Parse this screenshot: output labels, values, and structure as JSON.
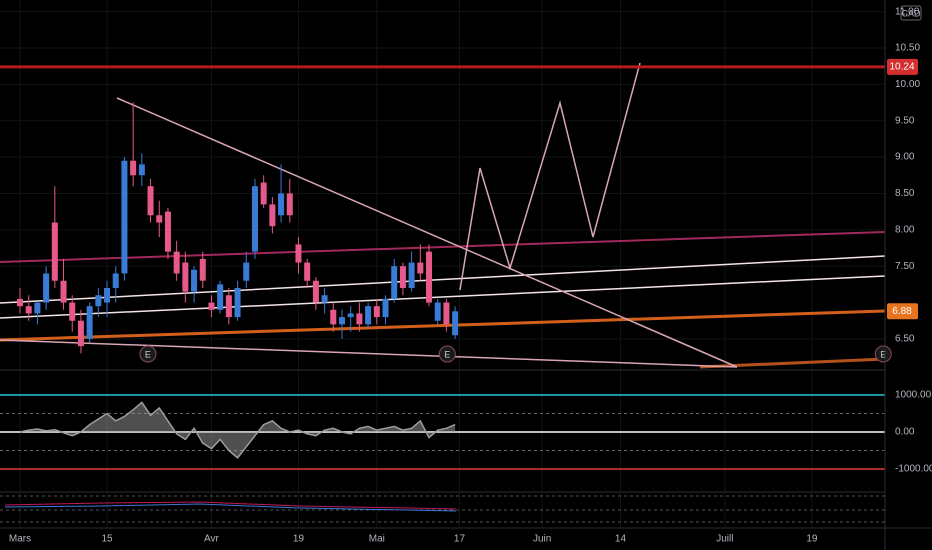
{
  "chart_data": {
    "type": "candlestick",
    "currency": "CAD",
    "x": [
      0,
      1,
      2,
      3,
      4,
      5,
      6,
      7,
      8,
      9,
      10,
      11,
      12,
      13,
      14,
      15,
      16,
      17,
      18,
      19,
      20,
      21,
      22,
      23,
      24,
      25,
      26,
      27,
      28,
      29,
      30,
      31,
      32,
      33,
      34,
      35,
      36,
      37,
      38,
      39,
      40,
      41,
      42,
      43,
      44,
      45,
      46,
      47,
      48,
      49,
      50
    ],
    "open": [
      7.05,
      6.95,
      6.85,
      7.0,
      8.1,
      7.3,
      7.0,
      6.75,
      6.5,
      6.95,
      7.0,
      7.2,
      7.4,
      8.95,
      8.75,
      8.6,
      8.2,
      8.25,
      7.7,
      7.55,
      7.15,
      7.6,
      7.0,
      6.9,
      7.1,
      6.8,
      7.3,
      7.7,
      8.65,
      8.35,
      8.2,
      8.5,
      7.8,
      7.55,
      7.3,
      7.0,
      6.9,
      6.7,
      6.8,
      6.85,
      6.7,
      6.95,
      6.8,
      7.05,
      7.5,
      7.2,
      7.55,
      7.7,
      6.75,
      7.0,
      6.55
    ],
    "high": [
      7.2,
      7.1,
      7.0,
      7.5,
      8.6,
      7.6,
      7.1,
      6.9,
      7.0,
      7.2,
      7.3,
      7.5,
      9.0,
      9.75,
      9.05,
      8.7,
      8.4,
      8.3,
      7.85,
      7.7,
      7.5,
      7.7,
      7.1,
      7.3,
      7.2,
      7.3,
      7.7,
      8.7,
      8.75,
      8.45,
      8.9,
      8.7,
      7.9,
      7.6,
      7.35,
      7.2,
      7.0,
      6.9,
      6.95,
      7.0,
      7.0,
      7.05,
      7.1,
      7.6,
      7.55,
      7.7,
      7.8,
      7.8,
      7.05,
      7.05,
      6.95
    ],
    "low": [
      6.85,
      6.75,
      6.7,
      6.9,
      7.2,
      6.9,
      6.6,
      6.3,
      6.45,
      6.8,
      6.8,
      7.0,
      7.3,
      8.6,
      8.6,
      8.1,
      7.9,
      7.6,
      7.3,
      7.0,
      7.0,
      7.2,
      6.8,
      6.85,
      6.7,
      6.75,
      7.2,
      7.6,
      8.3,
      7.95,
      8.1,
      8.1,
      7.4,
      7.2,
      6.9,
      6.85,
      6.6,
      6.5,
      6.6,
      6.6,
      6.65,
      6.7,
      6.7,
      7.0,
      7.1,
      7.15,
      7.3,
      6.95,
      6.7,
      6.6,
      6.5
    ],
    "close": [
      6.95,
      6.85,
      7.0,
      7.4,
      7.3,
      7.0,
      6.75,
      6.4,
      6.95,
      7.1,
      7.2,
      7.4,
      8.95,
      8.75,
      8.9,
      8.2,
      8.1,
      7.7,
      7.4,
      7.15,
      7.45,
      7.3,
      6.9,
      7.25,
      6.8,
      7.2,
      7.55,
      8.6,
      8.35,
      8.05,
      8.5,
      8.2,
      7.55,
      7.3,
      7.0,
      7.1,
      6.7,
      6.8,
      6.85,
      6.7,
      6.95,
      6.8,
      7.05,
      7.5,
      7.2,
      7.55,
      7.4,
      7.0,
      7.0,
      6.7,
      6.88
    ],
    "up_color": "#3a7bd5",
    "down_color": "#e8598b",
    "xlim": [
      -2.3,
      99.4
    ],
    "ylim": [
      6.1,
      11.16
    ],
    "xticks": [
      {
        "value": 0,
        "label": "Mars"
      },
      {
        "value": 10,
        "label": "15"
      },
      {
        "value": 22,
        "label": "Avr"
      },
      {
        "value": 32,
        "label": "19"
      },
      {
        "value": 41,
        "label": "Mai"
      },
      {
        "value": 50.5,
        "label": "17"
      },
      {
        "value": 60,
        "label": "Juin"
      },
      {
        "value": 69,
        "label": "14"
      },
      {
        "value": 81,
        "label": "Juill"
      },
      {
        "value": 91,
        "label": "19"
      }
    ],
    "yticks": [
      {
        "value": 6.5,
        "label": "6.50"
      },
      {
        "value": 7.5,
        "label": "7.50"
      },
      {
        "value": 8,
        "label": "8.00"
      },
      {
        "value": 8.5,
        "label": "8.50"
      },
      {
        "value": 9,
        "label": "9.00"
      },
      {
        "value": 9.5,
        "label": "9.50"
      },
      {
        "value": 10,
        "label": "10.00"
      },
      {
        "value": 10.5,
        "label": "10.50"
      },
      {
        "value": 11,
        "label": "11.00"
      }
    ],
    "alert_line": 10.24,
    "alert_color": "#b71c1c",
    "last_price": 6.88,
    "last_price_color": "#e8741f",
    "earnings_markers": [
      {
        "x": 14.7,
        "label": "E"
      },
      {
        "x": 49.1,
        "label": "E"
      },
      {
        "x": 99.2,
        "label": "E"
      }
    ],
    "oscillator": {
      "values": [
        0,
        50,
        80,
        30,
        60,
        -20,
        -100,
        0,
        200,
        350,
        500,
        300,
        420,
        600,
        800,
        450,
        650,
        300,
        -50,
        -200,
        100,
        -300,
        -450,
        -200,
        -500,
        -700,
        -400,
        -100,
        200,
        300,
        100,
        0,
        50,
        -50,
        -100,
        50,
        100,
        0,
        -50,
        100,
        150,
        50,
        100,
        150,
        50,
        100,
        300,
        -150,
        50,
        100,
        200
      ],
      "color": "#9e9e9e",
      "ylim": [
        -1568,
        1622
      ],
      "yticks": [
        {
          "value": 1000,
          "label": "1000.00"
        },
        {
          "value": 0,
          "label": "0.00"
        },
        {
          "value": -1000,
          "label": "-1000.00"
        }
      ],
      "level_colors": [
        "#26c6da",
        "#ffffff",
        "#e53935"
      ]
    }
  }
}
